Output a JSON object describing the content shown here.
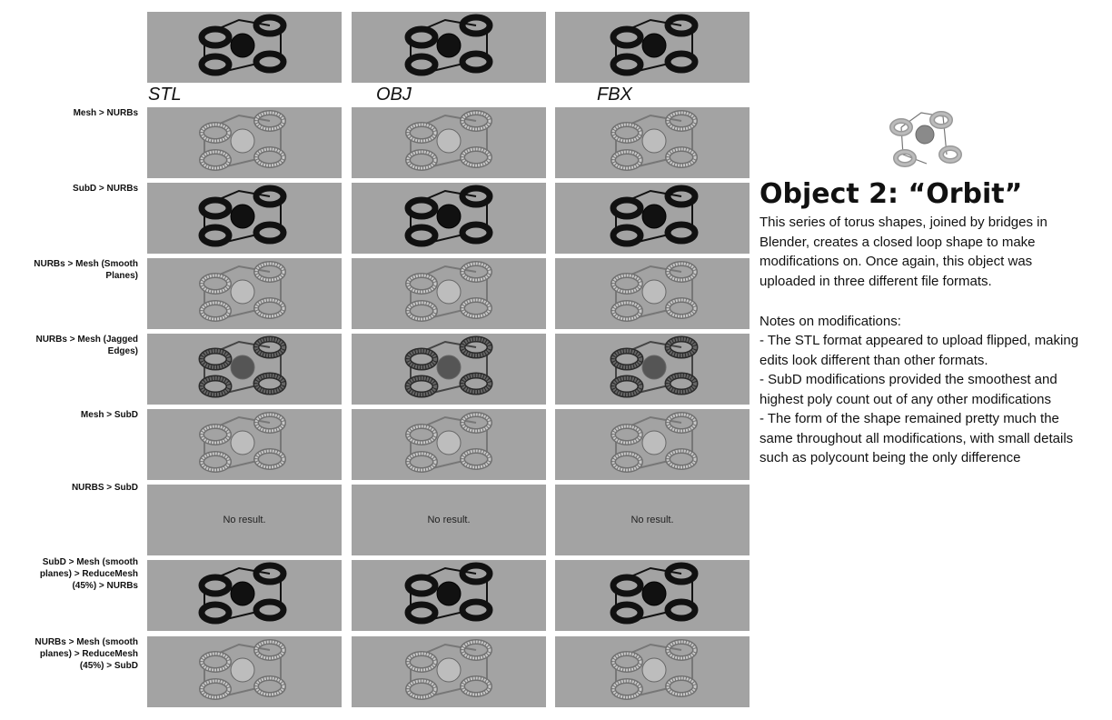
{
  "formats": [
    "STL",
    "OBJ",
    "FBX"
  ],
  "rows": [
    {
      "label": "",
      "variant": "black"
    },
    {
      "label": "Mesh > NURBs",
      "variant": "lightmesh"
    },
    {
      "label": "SubD > NURBs",
      "variant": "black"
    },
    {
      "label": "NURBs > Mesh (Smooth Planes)",
      "variant": "lightmesh"
    },
    {
      "label": "NURBs > Mesh (Jagged Edges)",
      "variant": "darkmesh"
    },
    {
      "label": "Mesh > SubD",
      "variant": "lightmesh"
    },
    {
      "label": "NURBS > SubD",
      "variant": "none"
    },
    {
      "label": "SubD > Mesh (smooth planes) > ReduceMesh (45%) > NURBs",
      "variant": "black"
    },
    {
      "label": "NURBs > Mesh (smooth planes) > ReduceMesh (45%) > SubD",
      "variant": "lightmesh"
    }
  ],
  "no_result_text": "No result.",
  "title": "Object 2: “Orbit”",
  "description": "This series of torus shapes, joined by bridges in Blender, creates a closed loop shape to make modifications on. Once again, this object was uploaded in three different file formats.",
  "notes_heading": "Notes on modifications:",
  "notes": [
    "- The STL format appeared to upload flipped, making edits look different than other formats.",
    "- SubD modifications provided the smoothest and highest poly count out of any other modifications",
    "- The form of the shape remained pretty much the same throughout all modifications, with small details such as polycount being the only difference"
  ],
  "colors": {
    "cell_bg": "#a3a3a3",
    "black_model": "#111111",
    "light_model": "#c8c8c8",
    "light_model_edge": "#707070",
    "dark_mesh": "#2a2a2a"
  }
}
